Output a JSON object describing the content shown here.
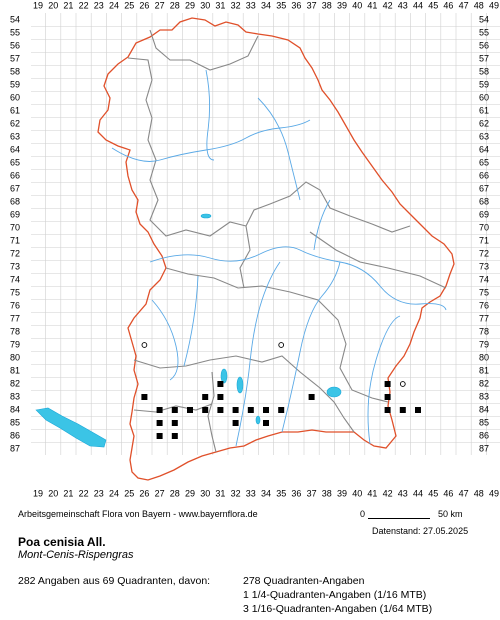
{
  "map": {
    "x_labels": [
      "19",
      "20",
      "21",
      "22",
      "23",
      "24",
      "25",
      "26",
      "27",
      "28",
      "29",
      "30",
      "31",
      "32",
      "33",
      "34",
      "35",
      "36",
      "37",
      "38",
      "39",
      "40",
      "41",
      "42",
      "43",
      "44",
      "45",
      "46",
      "47",
      "48",
      "49"
    ],
    "y_labels": [
      "54",
      "55",
      "56",
      "57",
      "58",
      "59",
      "60",
      "61",
      "62",
      "63",
      "64",
      "65",
      "66",
      "67",
      "68",
      "69",
      "70",
      "71",
      "72",
      "73",
      "74",
      "75",
      "76",
      "77",
      "78",
      "79",
      "80",
      "81",
      "82",
      "83",
      "84",
      "85",
      "86",
      "87"
    ],
    "colors": {
      "border_state": "#e0502a",
      "border_district": "#888888",
      "rivers": "#5aa9e6",
      "lakes": "#3bc4e6",
      "grid": "#d0d0d0",
      "markers": "#000000"
    },
    "records_filled": [
      [
        26,
        83
      ],
      [
        27,
        84
      ],
      [
        27,
        85
      ],
      [
        27,
        86
      ],
      [
        28,
        84
      ],
      [
        28,
        85
      ],
      [
        28,
        86
      ],
      [
        29,
        84
      ],
      [
        30,
        83
      ],
      [
        30,
        84
      ],
      [
        31,
        82
      ],
      [
        31,
        83
      ],
      [
        31,
        84
      ],
      [
        32,
        84
      ],
      [
        32,
        85
      ],
      [
        33,
        84
      ],
      [
        34,
        84
      ],
      [
        34,
        85
      ],
      [
        35,
        84
      ],
      [
        37,
        83
      ],
      [
        42,
        82
      ],
      [
        42,
        83
      ],
      [
        42,
        84
      ],
      [
        43,
        84
      ],
      [
        44,
        84
      ]
    ],
    "records_open": [
      [
        26,
        79
      ],
      [
        35,
        79
      ],
      [
        43,
        82
      ]
    ]
  },
  "footer": {
    "credit": "Arbeitsgemeinschaft Flora von Bayern - www.bayernflora.de",
    "scale_zero": "0",
    "scale_end": "50 km",
    "date": "Datenstand: 27.05.2025",
    "species_name": "Poa cenisia All.",
    "common_name": "Mont-Cenis-Rispengras",
    "total_summary": "282 Angaben aus 69 Quadranten, davon:",
    "quad_full": "278 Quadranten-Angaben",
    "quad_quarter": "1 1/4-Quadranten-Angaben (1/16 MTB)",
    "quad_sixteenth": "3 1/16-Quadranten-Angaben (1/64 MTB)"
  }
}
